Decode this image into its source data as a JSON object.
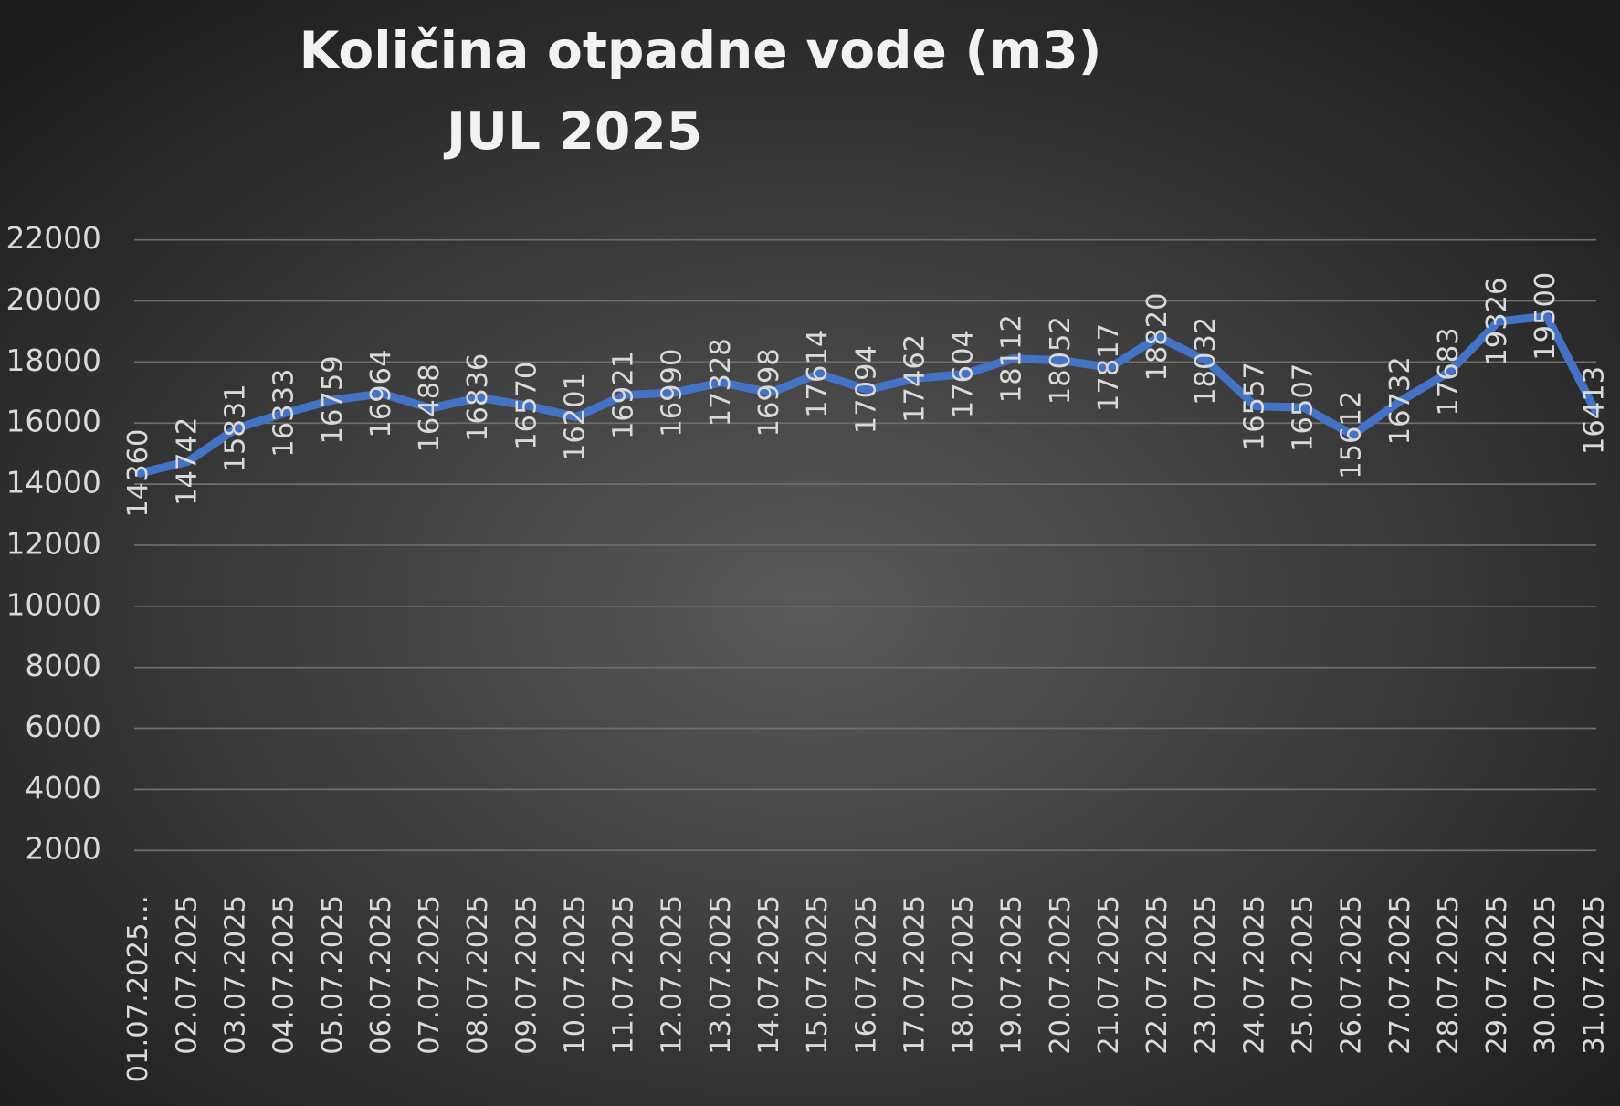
{
  "chart_data": {
    "type": "line",
    "title": "Količina otpadne vode (m3)",
    "subtitle": "JUL 2025",
    "categories": [
      "01.07.2025…",
      "02.07.2025",
      "03.07.2025",
      "04.07.2025",
      "05.07.2025",
      "06.07.2025",
      "07.07.2025",
      "08.07.2025",
      "09.07.2025",
      "10.07.2025",
      "11.07.2025",
      "12.07.2025",
      "13.07.2025",
      "14.07.2025",
      "15.07.2025",
      "16.07.2025",
      "17.07.2025",
      "18.07.2025",
      "19.07.2025",
      "20.07.2025",
      "21.07.2025",
      "22.07.2025",
      "23.07.2025",
      "24.07.2025",
      "25.07.2025",
      "26.07.2025",
      "27.07.2025",
      "28.07.2025",
      "29.07.2025",
      "30.07.2025",
      "31.07.2025"
    ],
    "values": [
      14360,
      14742,
      15831,
      16333,
      16759,
      16964,
      16488,
      16836,
      16570,
      16201,
      16921,
      16990,
      17328,
      16998,
      17614,
      17094,
      17462,
      17604,
      18112,
      18052,
      17817,
      18820,
      18032,
      16557,
      16507,
      15612,
      16732,
      17683,
      19326,
      19500,
      16413
    ],
    "color": "#4472c4",
    "ylim": [
      0,
      22000
    ],
    "yticks": [
      2000,
      4000,
      6000,
      8000,
      10000,
      12000,
      14000,
      16000,
      18000,
      20000,
      22000
    ],
    "grid": true
  }
}
